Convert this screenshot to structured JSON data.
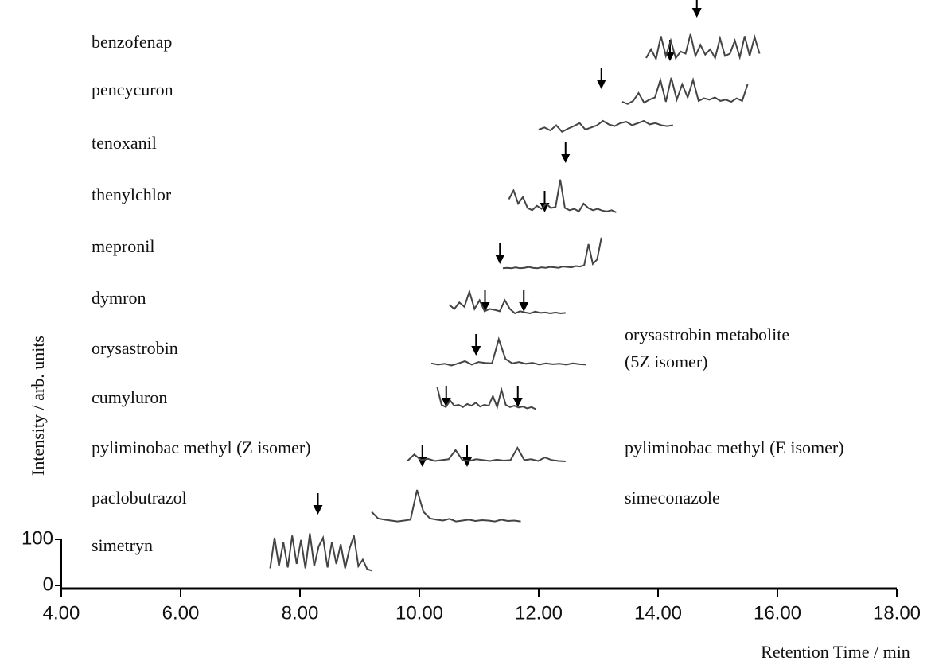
{
  "chart_data": {
    "type": "line",
    "xlabel": "Retention Time / min",
    "ylabel": "Intensity / arb. units",
    "xlim": [
      4,
      18
    ],
    "xticks": [
      {
        "value": 4,
        "label": "4.00"
      },
      {
        "value": 6,
        "label": "6.00"
      },
      {
        "value": 8,
        "label": "8.00"
      },
      {
        "value": 10,
        "label": "10.00"
      },
      {
        "value": 12,
        "label": "12.00"
      },
      {
        "value": 14,
        "label": "14.00"
      },
      {
        "value": 16,
        "label": "16.00"
      },
      {
        "value": 18,
        "label": "18.00"
      }
    ],
    "ylim": [
      0,
      100
    ],
    "yticks": [
      0,
      100
    ],
    "color": "#444",
    "series": [
      {
        "name": "simetryn",
        "x_range": [
          7.5,
          9.2
        ],
        "values": [
          10,
          80,
          15,
          70,
          12,
          85,
          20,
          75,
          10,
          90,
          15,
          60,
          80,
          12,
          70,
          20,
          65,
          10,
          55,
          85,
          15,
          30,
          8,
          5
        ],
        "markers": [
          {
            "x": 8.3
          }
        ]
      },
      {
        "name": "paclobutrazol",
        "x_range": [
          9.2,
          11.7
        ],
        "values": [
          30,
          15,
          12,
          10,
          8,
          10,
          12,
          80,
          30,
          15,
          12,
          10,
          14,
          8,
          10,
          12,
          9,
          11,
          10,
          8,
          12,
          9,
          10,
          8
        ],
        "markers": [
          {
            "x": 10.05
          },
          {
            "x": 10.8,
            "label_lines": [
              "simeconazole"
            ]
          }
        ]
      },
      {
        "name": "pyliminobac methyl (Z isomer)",
        "x_range": [
          9.8,
          12.45
        ],
        "values": [
          10,
          25,
          12,
          15,
          10,
          12,
          14,
          35,
          12,
          10,
          14,
          12,
          10,
          13,
          11,
          12,
          40,
          12,
          14,
          10,
          18,
          12,
          10,
          9
        ],
        "markers": [
          {
            "x": 10.45
          },
          {
            "x": 11.65,
            "label_lines": [
              "pyliminobac methyl (E isomer)"
            ]
          }
        ]
      },
      {
        "name": "cumyluron",
        "x_range": [
          10.3,
          11.95
        ],
        "values": [
          60,
          20,
          15,
          30,
          18,
          20,
          15,
          22,
          18,
          25,
          16,
          20,
          18,
          40,
          15,
          55,
          20,
          15,
          18,
          14,
          16,
          12,
          15,
          10
        ],
        "markers": [
          {
            "x": 10.95
          }
        ]
      },
      {
        "name": "orysastrobin",
        "x_range": [
          10.2,
          12.8
        ],
        "values": [
          15,
          12,
          14,
          10,
          15,
          20,
          12,
          18,
          16,
          15,
          70,
          25,
          15,
          18,
          14,
          16,
          12,
          15,
          13,
          14,
          12,
          15,
          13,
          12
        ],
        "markers": [
          {
            "x": 11.1
          },
          {
            "x": 11.75,
            "label_lines": [
              "orysastrobin metabolite",
              "(5Z isomer)"
            ]
          }
        ]
      },
      {
        "name": "dymron",
        "x_range": [
          10.5,
          12.45
        ],
        "values": [
          40,
          30,
          45,
          35,
          70,
          30,
          50,
          25,
          30,
          28,
          25,
          50,
          30,
          20,
          25,
          22,
          20,
          24,
          21,
          22,
          20,
          22,
          20,
          21
        ],
        "markers": [
          {
            "x": 11.35
          }
        ]
      },
      {
        "name": "mepronil",
        "x_range": [
          11.4,
          13.05
        ],
        "values": [
          5,
          6,
          5,
          7,
          5,
          6,
          8,
          6,
          5,
          7,
          6,
          8,
          7,
          6,
          9,
          8,
          7,
          10,
          9,
          12,
          60,
          15,
          25,
          75
        ],
        "markers": [
          {
            "x": 12.1
          }
        ]
      },
      {
        "name": "thenylchlor",
        "x_range": [
          11.5,
          13.3
        ],
        "values": [
          50,
          70,
          40,
          55,
          30,
          25,
          35,
          28,
          40,
          30,
          32,
          95,
          30,
          25,
          28,
          22,
          40,
          30,
          25,
          28,
          24,
          22,
          25,
          20
        ],
        "markers": [
          {
            "x": 12.45
          }
        ]
      },
      {
        "name": "tenoxanil",
        "x_range": [
          12.0,
          14.25
        ],
        "values": [
          40,
          45,
          38,
          50,
          35,
          42,
          48,
          55,
          40,
          45,
          50,
          60,
          52,
          48,
          55,
          58,
          50,
          55,
          60,
          52,
          55,
          50,
          48,
          50
        ],
        "markers": [
          {
            "x": 13.05
          }
        ]
      },
      {
        "name": "pencycuron",
        "x_range": [
          13.4,
          15.5
        ],
        "values": [
          40,
          35,
          42,
          60,
          38,
          45,
          50,
          90,
          40,
          95,
          45,
          80,
          50,
          90,
          42,
          48,
          45,
          50,
          42,
          45,
          40,
          48,
          42,
          80
        ],
        "markers": [
          {
            "x": 14.2
          }
        ]
      },
      {
        "name": "benzofenap",
        "x_range": [
          13.8,
          15.7
        ],
        "values": [
          40,
          60,
          38,
          90,
          45,
          80,
          40,
          55,
          50,
          95,
          45,
          70,
          48,
          60,
          40,
          85,
          45,
          50,
          80,
          42,
          90,
          45,
          88,
          50
        ],
        "markers": [
          {
            "x": 14.65
          }
        ]
      }
    ]
  }
}
